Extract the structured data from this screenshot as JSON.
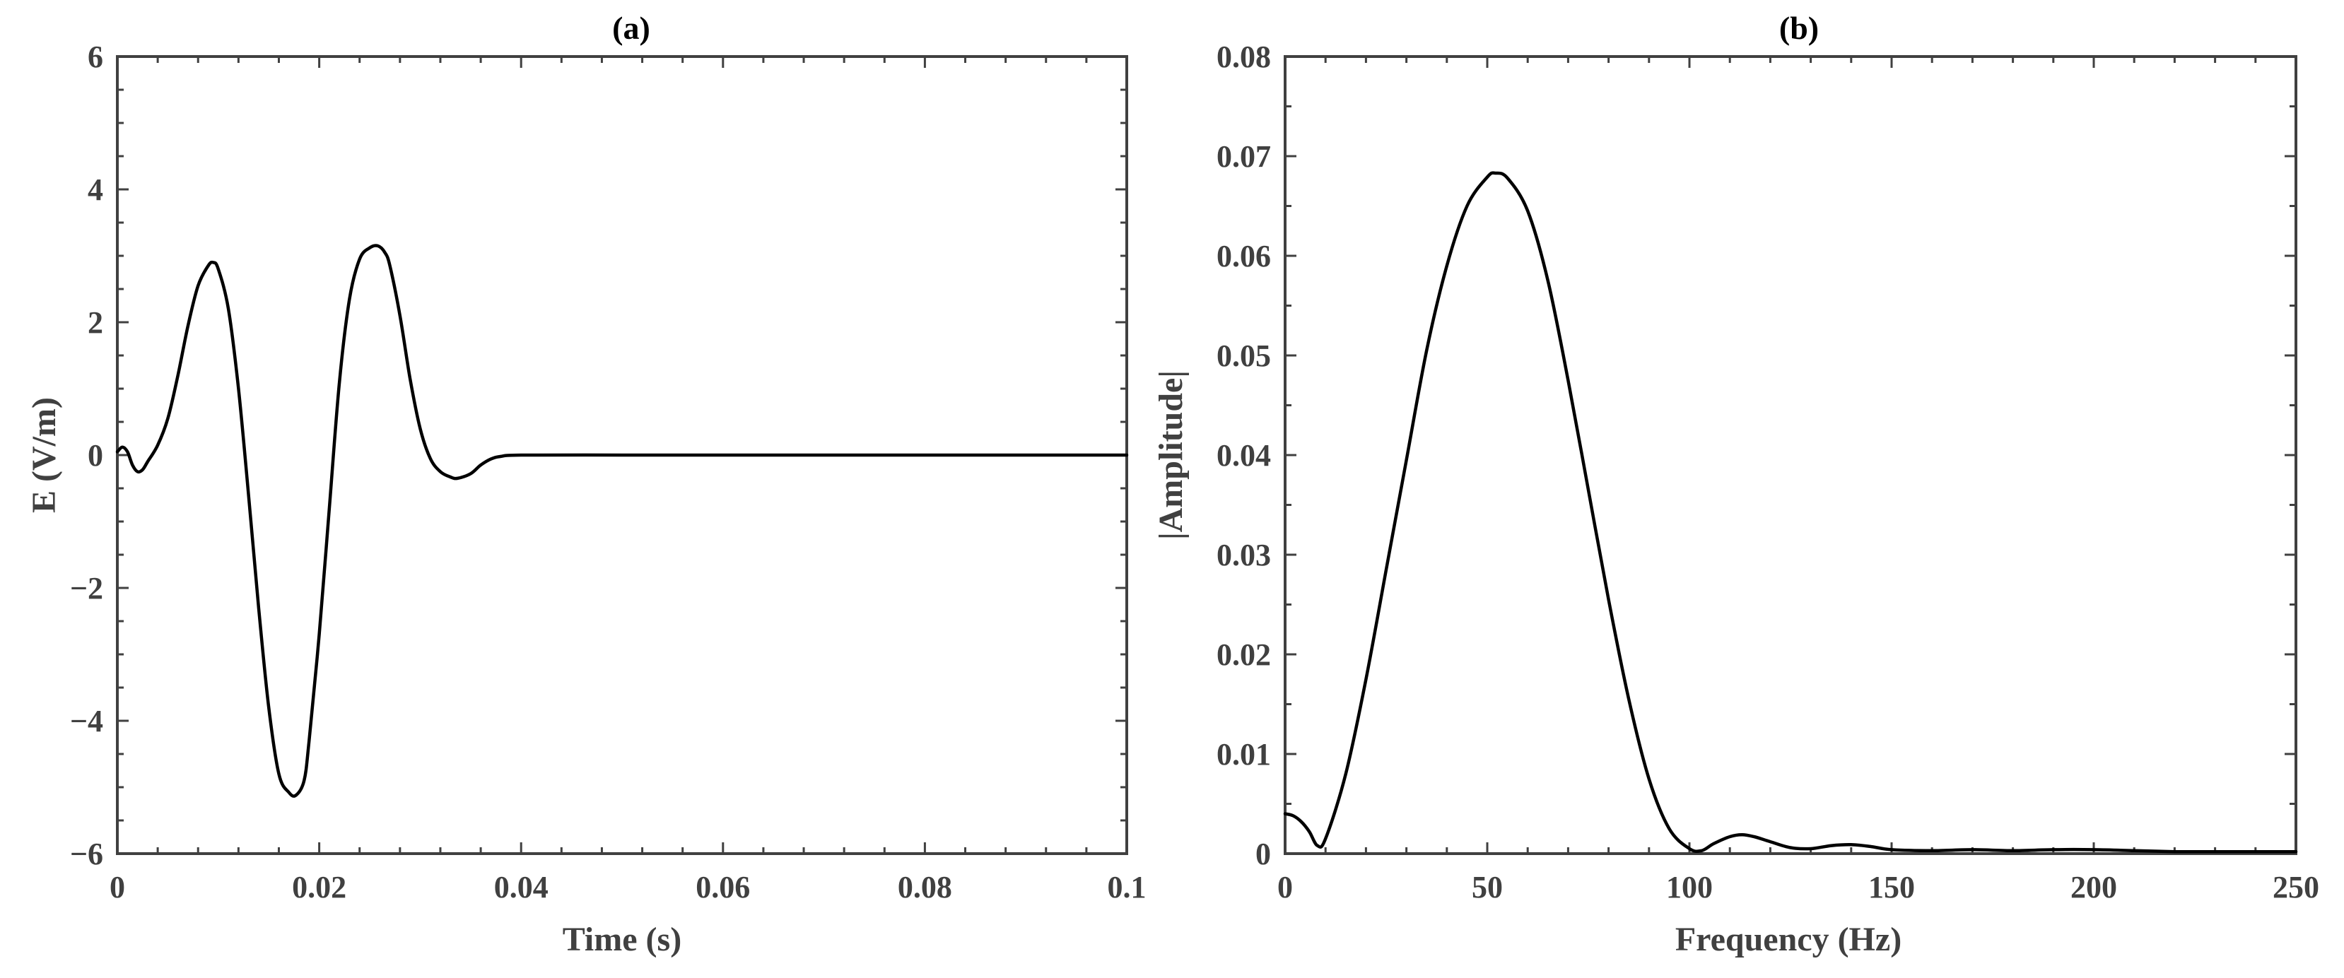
{
  "chart_data": [
    {
      "type": "line",
      "title": "(a)",
      "xlabel": "Time (s)",
      "ylabel": "E (V/m)",
      "xlim": [
        0,
        0.1
      ],
      "ylim": [
        -6,
        6
      ],
      "xticks": [
        0,
        0.02,
        0.04,
        0.06,
        0.08,
        0.1
      ],
      "xtick_labels": [
        "0",
        "0.02",
        "0.04",
        "0.06",
        "0.08",
        "0.1"
      ],
      "yticks": [
        -6,
        -4,
        -2,
        0,
        2,
        4,
        6
      ],
      "ytick_labels": [
        "−6",
        "−4",
        "−2",
        "0",
        "2",
        "4",
        "6"
      ],
      "grid": false,
      "series": [
        {
          "color": "#000000",
          "x": [
            0,
            0.0005,
            0.001,
            0.0015,
            0.002,
            0.0025,
            0.003,
            0.004,
            0.005,
            0.006,
            0.007,
            0.008,
            0.009,
            0.0095,
            0.01,
            0.011,
            0.012,
            0.013,
            0.014,
            0.015,
            0.016,
            0.017,
            0.0177,
            0.0185,
            0.019,
            0.02,
            0.021,
            0.022,
            0.023,
            0.024,
            0.025,
            0.0258,
            0.0265,
            0.027,
            0.028,
            0.029,
            0.03,
            0.031,
            0.032,
            0.033,
            0.0337,
            0.035,
            0.036,
            0.037,
            0.038,
            0.04,
            0.05,
            0.06,
            0.07,
            0.08,
            0.09,
            0.1
          ],
          "y": [
            0.05,
            0.12,
            0.05,
            -0.15,
            -0.25,
            -0.22,
            -0.1,
            0.15,
            0.55,
            1.2,
            1.95,
            2.55,
            2.85,
            2.9,
            2.8,
            2.2,
            1.0,
            -0.6,
            -2.3,
            -3.8,
            -4.8,
            -5.08,
            -5.12,
            -4.9,
            -4.3,
            -2.7,
            -0.8,
            1.1,
            2.35,
            2.95,
            3.12,
            3.15,
            3.05,
            2.85,
            2.1,
            1.15,
            0.4,
            -0.05,
            -0.25,
            -0.33,
            -0.35,
            -0.28,
            -0.15,
            -0.06,
            -0.02,
            0,
            0,
            0,
            0,
            0,
            0,
            0
          ]
        }
      ]
    },
    {
      "type": "line",
      "title": "(b)",
      "xlabel": "Frequency (Hz)",
      "ylabel": "|Amplitude|",
      "xlim": [
        0,
        250
      ],
      "ylim": [
        0,
        0.08
      ],
      "xticks": [
        0,
        50,
        100,
        150,
        200,
        250
      ],
      "xtick_labels": [
        "0",
        "50",
        "100",
        "150",
        "200",
        "250"
      ],
      "yticks": [
        0,
        0.01,
        0.02,
        0.03,
        0.04,
        0.05,
        0.06,
        0.07,
        0.08
      ],
      "ytick_labels": [
        "0",
        "0.01",
        "0.02",
        "0.03",
        "0.04",
        "0.05",
        "0.06",
        "0.07",
        "0.08"
      ],
      "grid": false,
      "series": [
        {
          "color": "#000000",
          "x": [
            0,
            2,
            4,
            6,
            8,
            10,
            15,
            20,
            25,
            30,
            35,
            40,
            45,
            50,
            52,
            55,
            60,
            65,
            70,
            75,
            80,
            85,
            90,
            95,
            100,
            103,
            106,
            110,
            113,
            116,
            120,
            125,
            130,
            135,
            140,
            145,
            150,
            160,
            170,
            180,
            190,
            200,
            210,
            220,
            230,
            240,
            250
          ],
          "y": [
            0.004,
            0.0038,
            0.0032,
            0.0022,
            0.0008,
            0.0015,
            0.008,
            0.0175,
            0.0285,
            0.0395,
            0.0505,
            0.059,
            0.065,
            0.0679,
            0.0683,
            0.0678,
            0.0645,
            0.0575,
            0.0475,
            0.0365,
            0.0255,
            0.0155,
            0.0075,
            0.0025,
            0.0005,
            0.0003,
            0.001,
            0.0017,
            0.0019,
            0.0017,
            0.0012,
            0.0006,
            0.0005,
            0.0008,
            0.0009,
            0.0007,
            0.0004,
            0.0003,
            0.0004,
            0.0003,
            0.0004,
            0.0004,
            0.0003,
            0.0002,
            0.0002,
            0.0002,
            0.0002
          ]
        }
      ]
    }
  ]
}
